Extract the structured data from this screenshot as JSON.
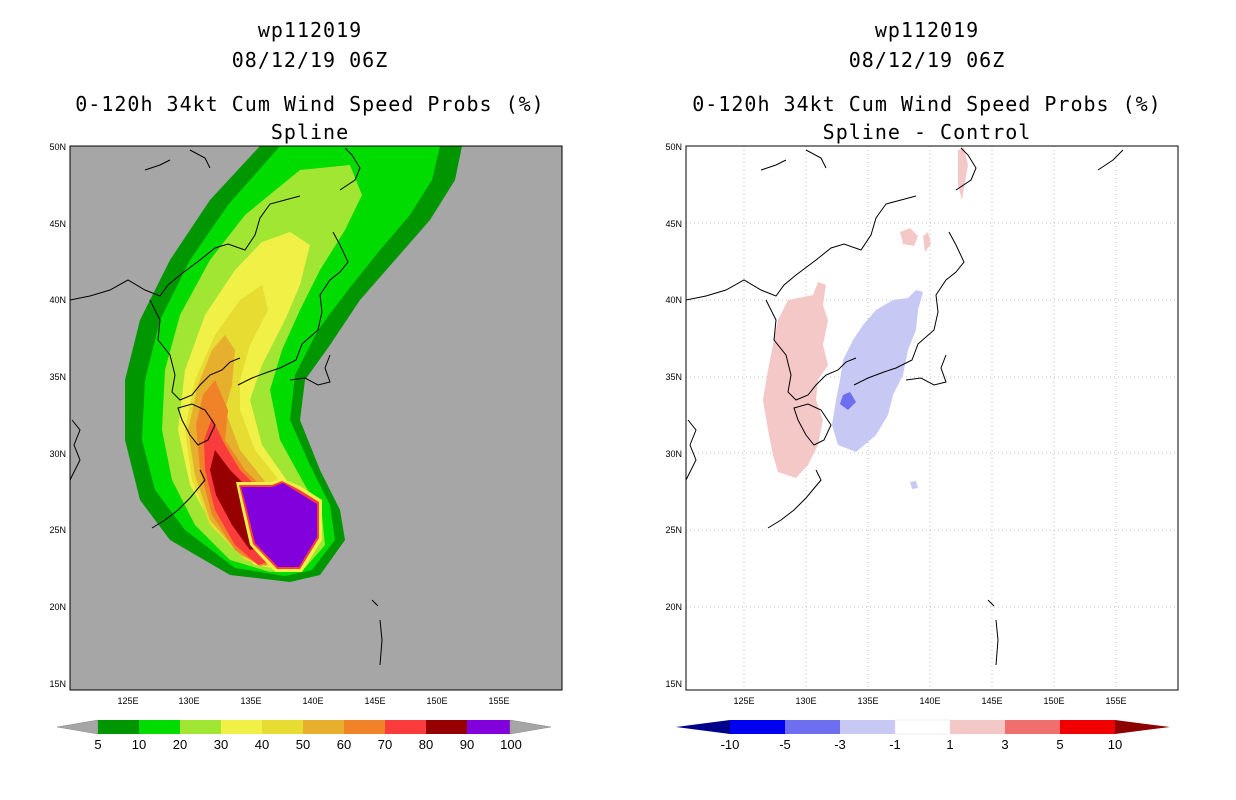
{
  "left_panel": {
    "title_line1": "wp112019",
    "title_line2": "08/12/19 06Z",
    "title_line3": "0-120h 34kt Cum Wind Speed Probs (%)",
    "title_line4": "Spline",
    "lat_labels": [
      "50N",
      "45N",
      "40N",
      "35N",
      "30N",
      "25N",
      "20N",
      "15N"
    ],
    "lon_labels": [
      "125E",
      "130E",
      "135E",
      "140E",
      "145E",
      "150E",
      "155E"
    ],
    "background_color": "#a6a6a6",
    "colorbar": {
      "labels": [
        "5",
        "10",
        "20",
        "30",
        "40",
        "50",
        "60",
        "70",
        "80",
        "90",
        "100"
      ],
      "colors": [
        "#5a5a5a",
        "#009600",
        "#00dc00",
        "#a0e632",
        "#f0f046",
        "#e6dc32",
        "#e6af2d",
        "#f08228",
        "#fa3c3c",
        "#960000",
        "#8200dc"
      ]
    }
  },
  "right_panel": {
    "title_line1": "wp112019",
    "title_line2": "08/12/19 06Z",
    "title_line3": "0-120h 34kt Cum Wind Speed Probs (%)",
    "title_line4": "Spline - Control",
    "lat_labels": [
      "50N",
      "45N",
      "40N",
      "35N",
      "30N",
      "25N",
      "20N",
      "15N"
    ],
    "lon_labels": [
      "125E",
      "130E",
      "135E",
      "140E",
      "145E",
      "150E",
      "155E"
    ],
    "colorbar": {
      "labels": [
        "-10",
        "-5",
        "-3",
        "-1",
        "1",
        "3",
        "5",
        "10"
      ],
      "colors": [
        "#00008c",
        "#0000f0",
        "#6e6ef0",
        "#c8c8f5",
        "#ffffff",
        "#f5c8c8",
        "#f06e6e",
        "#f00000",
        "#8c0000"
      ]
    }
  }
}
